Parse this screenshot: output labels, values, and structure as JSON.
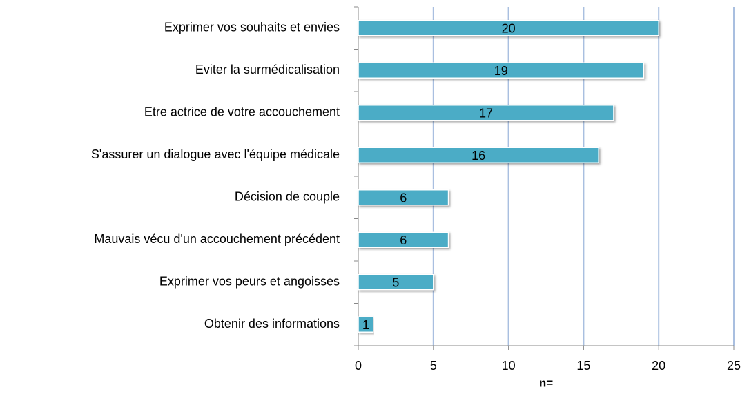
{
  "chart_data": {
    "type": "bar",
    "orientation": "horizontal",
    "x_label": "n=",
    "categories": [
      "Exprimer vos souhaits et envies",
      "Eviter la surmédicalisation",
      "Etre actrice de votre accouchement",
      "S'assurer un dialogue avec l'équipe médicale",
      "Décision de couple",
      "Mauvais vécu d'un accouchement précédent",
      "Exprimer vos peurs et angoisses",
      "Obtenir des informations"
    ],
    "values": [
      20,
      19,
      17,
      16,
      6,
      6,
      5,
      1
    ],
    "color": "#4bacc6",
    "xlim": [
      0,
      25
    ],
    "xticks": [
      0,
      5,
      10,
      15,
      20,
      25
    ],
    "grid": true
  }
}
